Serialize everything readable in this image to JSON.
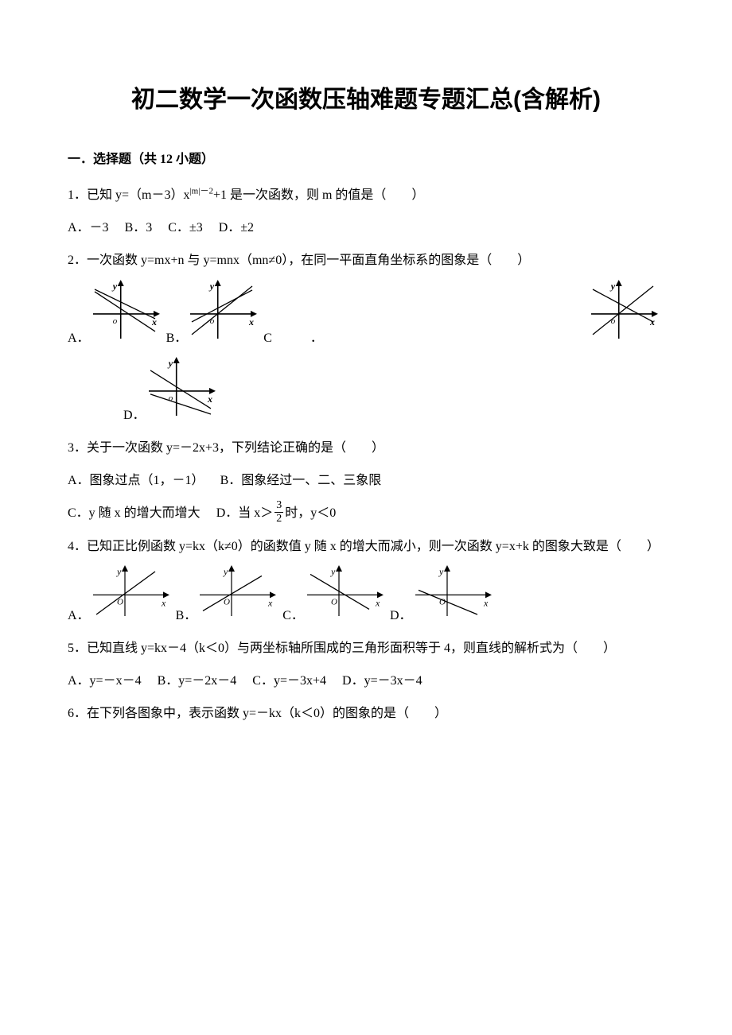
{
  "title": "初二数学一次函数压轴难题专题汇总(含解析)",
  "section": "一．选择题（共 12 小题）",
  "q1": {
    "text": "1．已知 y=（m－3）x|m|－2+1 是一次函数，则 m 的值是（　　）",
    "a": "A．－3",
    "b": "B．3",
    "c": "C．±3",
    "d": "D．±2"
  },
  "q2": {
    "text": "2．一次函数 y=mx+n 与 y=mnx（mn≠0），在同一平面直角坐标系的图象是（　　）",
    "a": "A．",
    "b": "B．",
    "c": "C　　　．",
    "d": "D．"
  },
  "q3": {
    "text": "3．关于一次函数 y=－2x+3，下列结论正确的是（　　）",
    "a": "A．图象过点（1，－1）",
    "b": "B．图象经过一、二、三象限",
    "c_pre": "C．y 随 x 的增大而增大",
    "d_pre": "D．当 x＞",
    "d_post": "时，y＜0",
    "frac_num": "3",
    "frac_den": "2"
  },
  "q4": {
    "text": "4．已知正比例函数 y=kx（k≠0）的函数值 y 随 x 的增大而减小，则一次函数 y=x+k 的图象大致是（　　）",
    "a": "A．",
    "b": "B．",
    "c": "C．",
    "d": "D．"
  },
  "q5": {
    "text": "5．已知直线 y=kx－4（k＜0）与两坐标轴所围成的三角形面积等于 4，则直线的解析式为（　　）",
    "a": "A．y=－x－4",
    "b": "B．y=－2x－4",
    "c": "C．y=－3x+4",
    "d": "D．y=－3x－4"
  },
  "q6": {
    "text": "6．在下列各图象中，表示函数 y=－kx（k＜0）的图象的是（　　）"
  },
  "graphs": {
    "medium": {
      "w": 88,
      "h": 78
    },
    "small": {
      "w": 100,
      "h": 68
    },
    "axis_color": "#000000",
    "label_fontsize": 12,
    "label_y": "y",
    "label_x": "x",
    "origin_label_lower": "o",
    "origin_label_upper": "O"
  }
}
